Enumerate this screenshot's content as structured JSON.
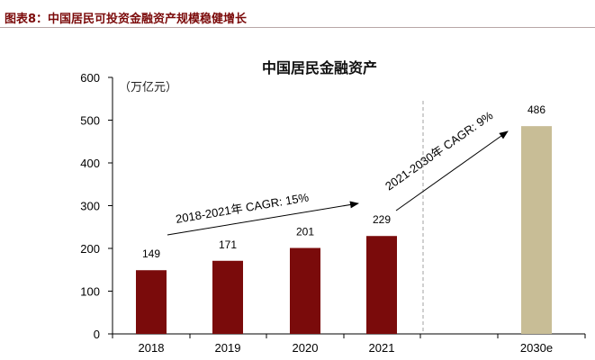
{
  "header": {
    "caption": "图表8：中国居民可投资金融资产规模稳健增长"
  },
  "chart_data": {
    "type": "bar",
    "title": "中国居民金融资产",
    "unit_label": "（万亿元）",
    "categories": [
      "2018",
      "2019",
      "2020",
      "2021",
      "2030e"
    ],
    "values": [
      149,
      171,
      201,
      229,
      486
    ],
    "ylim": [
      0,
      600
    ],
    "yticks": [
      0,
      100,
      200,
      300,
      400,
      500,
      600
    ],
    "grid": false,
    "colors": {
      "actual": "#7a0b0b",
      "forecast": "#c8bd96",
      "divider": "#a0a0a0"
    },
    "annotations": [
      {
        "text": "2018-2021年 CAGR: 15%",
        "from_index": 0,
        "to_index": 3
      },
      {
        "text": "2021-2030年 CAGR: 9%",
        "from_index": 3,
        "to_index": 4
      }
    ]
  }
}
